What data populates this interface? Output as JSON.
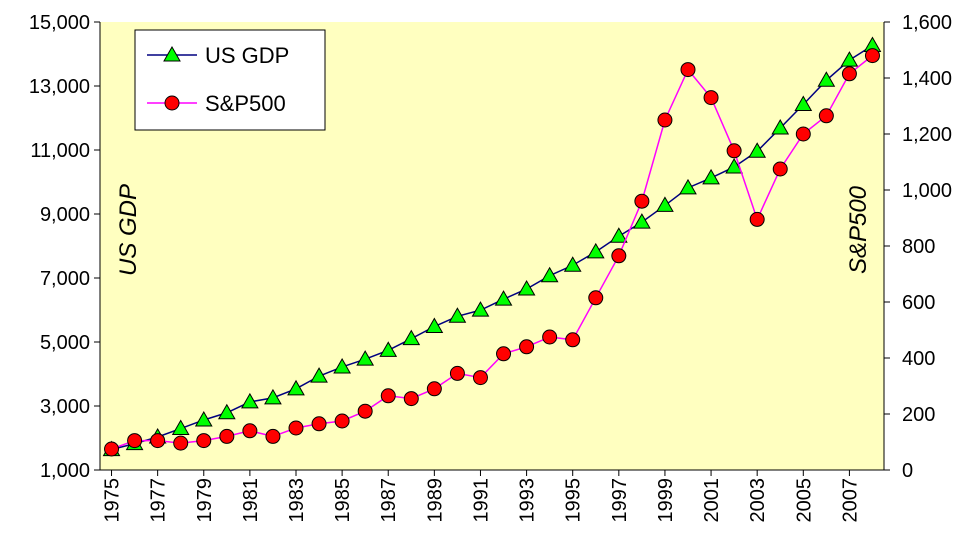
{
  "chart_data": {
    "type": "line",
    "x": [
      1975,
      1976,
      1977,
      1978,
      1979,
      1980,
      1981,
      1982,
      1983,
      1984,
      1985,
      1986,
      1987,
      1988,
      1989,
      1990,
      1991,
      1992,
      1993,
      1994,
      1995,
      1996,
      1997,
      1998,
      1999,
      2000,
      2001,
      2002,
      2003,
      2004,
      2005,
      2006,
      2007,
      2008
    ],
    "xlim": [
      1974.5,
      2008.5
    ],
    "xticks": [
      1975,
      1977,
      1979,
      1981,
      1983,
      1985,
      1987,
      1989,
      1991,
      1993,
      1995,
      1997,
      1999,
      2001,
      2003,
      2005,
      2007
    ],
    "ylabel": "US GDP",
    "y2label": "S&P500",
    "ylim": [
      1000,
      15000
    ],
    "yticks": [
      {
        "value": 1000,
        "label": "1,000"
      },
      {
        "value": 3000,
        "label": "3,000"
      },
      {
        "value": 5000,
        "label": "5,000"
      },
      {
        "value": 7000,
        "label": "7,000"
      },
      {
        "value": 9000,
        "label": "9,000"
      },
      {
        "value": 11000,
        "label": "11,000"
      },
      {
        "value": 13000,
        "label": "13,000"
      },
      {
        "value": 15000,
        "label": "15,000"
      }
    ],
    "y2lim": [
      0,
      1600
    ],
    "y2ticks": [
      0,
      200,
      400,
      600,
      800,
      {
        "value": 1000,
        "label": "1,000"
      },
      {
        "value": 1200,
        "label": "1,200"
      },
      {
        "value": 1400,
        "label": "1,400"
      },
      {
        "value": 1600,
        "label": "1,600"
      }
    ],
    "legend": "upper left",
    "series": [
      {
        "name": "US GDP",
        "color": "#000080",
        "marker": "triangle",
        "marker_color": "#00ff00",
        "values": [
          1638,
          1825,
          2031,
          2295,
          2563,
          2789,
          3128,
          3255,
          3537,
          3933,
          4220,
          4463,
          4740,
          5104,
          5484,
          5803,
          5996,
          6338,
          6657,
          7072,
          7398,
          7817,
          8304,
          8747,
          9268,
          9817,
          10128,
          10470,
          10961,
          11686,
          12422,
          13178,
          13808,
          14265
        ]
      },
      {
        "name": "S&P500",
        "color": "#ff00ff",
        "marker": "circle",
        "marker_color": "#ff0000",
        "axis": "y2",
        "values": [
          75,
          105,
          105,
          96,
          105,
          120,
          140,
          120,
          150,
          165,
          175,
          210,
          265,
          255,
          290,
          345,
          330,
          415,
          440,
          475,
          465,
          615,
          765,
          960,
          1250,
          1430,
          1330,
          1140,
          895,
          1075,
          1200,
          1265,
          1415,
          1480
        ]
      }
    ]
  }
}
